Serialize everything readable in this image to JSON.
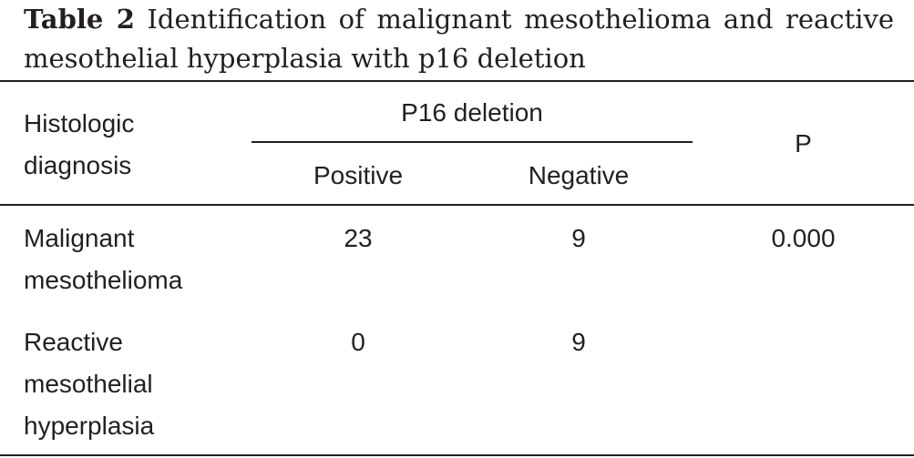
{
  "caption": {
    "label": "Table 2",
    "text": "Identification of malignant mesothelioma and reactive mesothelial hyperplasia with p16 deletion"
  },
  "header": {
    "col_diagnosis": "Histologic\ndiagnosis",
    "group": "P16 deletion",
    "col_positive": "Positive",
    "col_negative": "Negative",
    "col_p": "P"
  },
  "rows": [
    {
      "diagnosis": "Malignant\nmesothelioma",
      "positive": "23",
      "negative": "9",
      "p": "0.000"
    },
    {
      "diagnosis": "Reactive\nmesothelial\nhyperplasia",
      "positive": "0",
      "negative": "9",
      "p": ""
    }
  ]
}
